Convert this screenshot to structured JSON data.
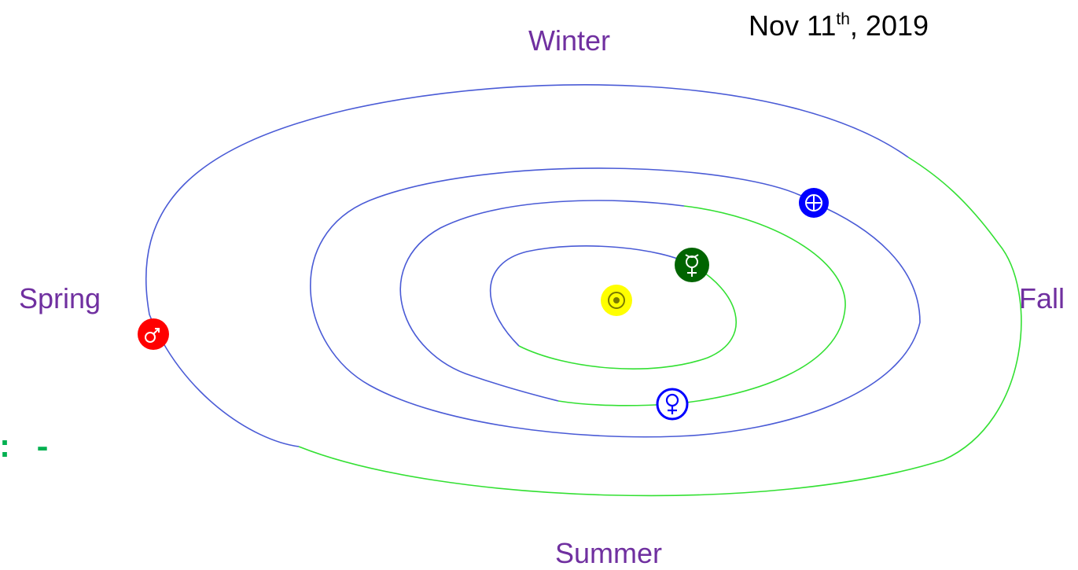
{
  "date": {
    "prefix": "Nov 11",
    "sup": "th",
    "suffix": ", 2019"
  },
  "seasons": {
    "winter": "Winter",
    "spring": "Spring",
    "fall": "Fall",
    "summer": "Summer"
  },
  "edge_mark": ": -",
  "colors": {
    "orbit_primary": "#4a5bd6",
    "orbit_secondary": "#33e033",
    "season_text": "#7030a0",
    "sun": "#ffff00",
    "mars": "#ff0000",
    "earth": "#0000ff",
    "mercury": "#006400",
    "venus": "#0000ff",
    "edge_mark": "#00b050"
  },
  "bodies": [
    {
      "name": "sun",
      "icon": "sun-symbol-icon",
      "symbol": "☉"
    },
    {
      "name": "mercury",
      "icon": "mercury-symbol-icon",
      "symbol": "☿"
    },
    {
      "name": "venus",
      "icon": "venus-symbol-icon",
      "symbol": "♀"
    },
    {
      "name": "earth",
      "icon": "earth-symbol-icon",
      "symbol": "⊕"
    },
    {
      "name": "mars",
      "icon": "mars-symbol-icon",
      "symbol": "♂"
    }
  ]
}
